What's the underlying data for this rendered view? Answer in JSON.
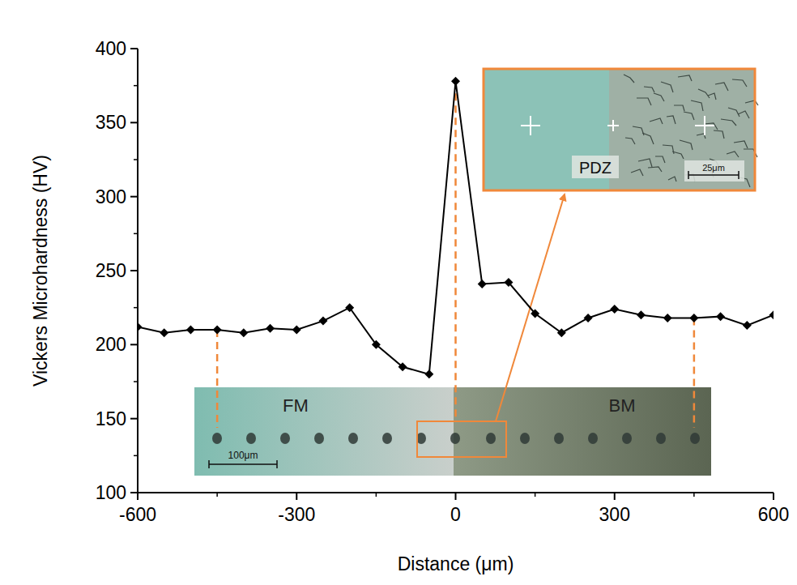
{
  "chart_data": {
    "type": "line",
    "x_label": "Distance (μm)",
    "y_label": "Vickers Microhardness (HV)",
    "x": [
      -600,
      -550,
      -500,
      -450,
      -400,
      -350,
      -300,
      -250,
      -200,
      -150,
      -100,
      -50,
      0,
      50,
      100,
      150,
      200,
      250,
      300,
      350,
      400,
      450,
      500,
      550,
      600
    ],
    "values": [
      212,
      208,
      210,
      210,
      208,
      211,
      210,
      216,
      225,
      200,
      185,
      180,
      378,
      241,
      242,
      221,
      208,
      218,
      224,
      220,
      218,
      218,
      219,
      213,
      220
    ],
    "color": "#000000",
    "marker": "diamond",
    "line_style": "solid",
    "xlim": [
      -600,
      600
    ],
    "xticks": [
      -600,
      -300,
      0,
      300,
      600
    ],
    "ylim": [
      100,
      400
    ],
    "yticks": [
      100,
      150,
      200,
      250,
      300,
      350,
      400
    ],
    "grid": false,
    "reference_lines": [
      -450,
      0,
      450
    ],
    "annotations": [
      "FM",
      "BM",
      "PDZ",
      "100μm",
      "25μm"
    ]
  }
}
